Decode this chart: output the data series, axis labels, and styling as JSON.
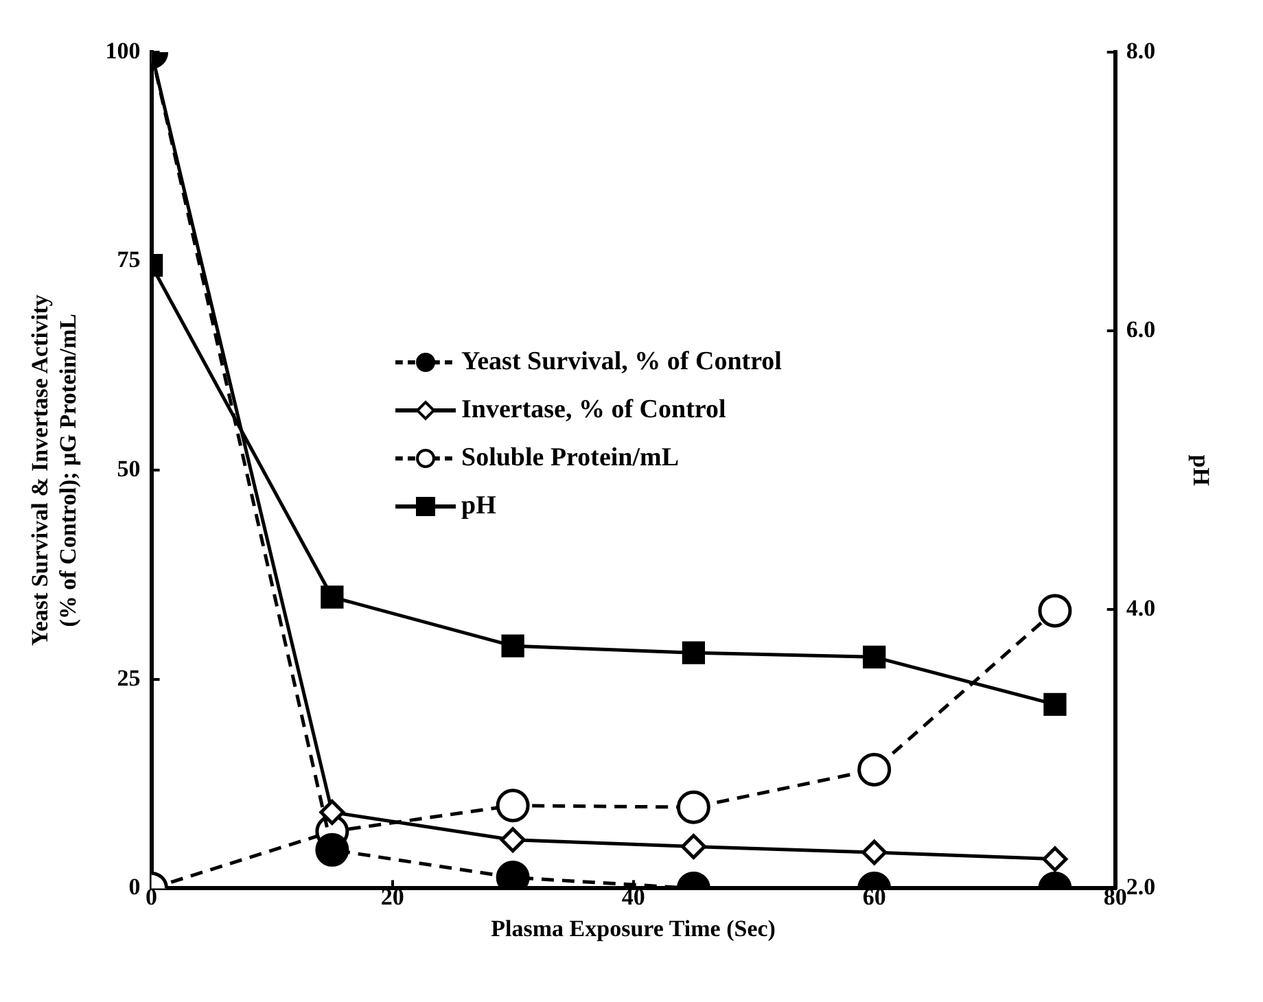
{
  "chart_data": {
    "type": "line",
    "xlabel": "Plasma Exposure Time (Sec)",
    "ylabel": "Yeast Survival & Invertase Activity\n(% of Control); µG Protein/mL",
    "y2label": "pH",
    "x": [
      0,
      15,
      30,
      45,
      60,
      75
    ],
    "xlim": [
      0,
      80
    ],
    "xticks": [
      0,
      20,
      40,
      60,
      80
    ],
    "ylim": [
      0,
      100
    ],
    "yticks": [
      0,
      25,
      50,
      75,
      100
    ],
    "y2lim": [
      2,
      8
    ],
    "y2ticks": [
      {
        "value": 2,
        "label": "2.0"
      },
      {
        "value": 4,
        "label": "4.0"
      },
      {
        "value": 6,
        "label": "6.0"
      },
      {
        "value": 8,
        "label": "8.0"
      }
    ],
    "grid": false,
    "legend": "center",
    "series": [
      {
        "name": "Yeast Survival, % of Control",
        "color": "#000000",
        "marker": "circle",
        "line_style": "dashed",
        "values": [
          100,
          4.6,
          1.3,
          0,
          0,
          0
        ]
      },
      {
        "name": "Invertase, % of Control",
        "color": "#000000",
        "marker": "diamond",
        "line_style": "solid",
        "values": [
          100,
          9.1,
          5.8,
          5.0,
          4.3,
          3.5
        ]
      },
      {
        "name": "Soluble Protein/mL",
        "color": "#000000",
        "marker": "circle",
        "line_style": "dashed",
        "values": [
          0,
          6.8,
          9.9,
          9.7,
          14.2,
          33.2
        ]
      },
      {
        "name": "pH",
        "color": "#000000",
        "marker": "square",
        "line_style": "solid",
        "axis": "y2",
        "values": [
          6.47,
          4.09,
          3.74,
          3.69,
          3.66,
          3.32
        ]
      }
    ]
  }
}
